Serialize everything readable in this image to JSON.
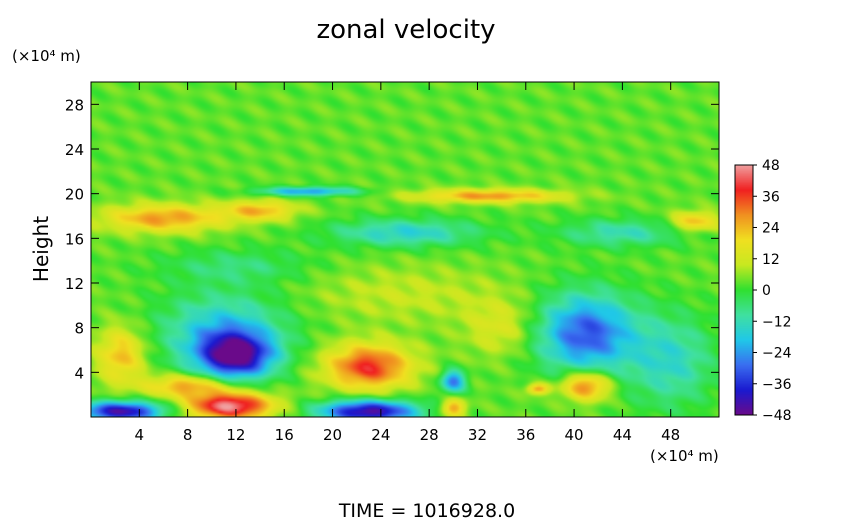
{
  "chart_data": {
    "type": "heatmap",
    "title": "zonal velocity",
    "ylabel": "Height",
    "xlabel": "",
    "x_unit": "(×10⁴ m)",
    "y_unit": "(×10⁴ m)",
    "footer": "TIME = 1016928.0",
    "xlim": [
      0,
      52
    ],
    "ylim": [
      0,
      30
    ],
    "x_ticks": [
      4,
      8,
      12,
      16,
      20,
      24,
      28,
      32,
      36,
      40,
      44,
      48
    ],
    "y_ticks": [
      4,
      8,
      12,
      16,
      20,
      24,
      28
    ],
    "colorbar": {
      "range": [
        -48,
        48
      ],
      "ticks": [
        48,
        36,
        24,
        12,
        0,
        -12,
        -24,
        -36,
        -48
      ],
      "colors": [
        "#6a0a8a",
        "#1a1ad0",
        "#3a6ef0",
        "#20c8e8",
        "#40e0a0",
        "#30e030",
        "#c8e820",
        "#f0e020",
        "#f09020",
        "#f02020",
        "#f0a0a0"
      ]
    },
    "background_value": 3,
    "features": [
      {
        "x": 2.5,
        "y": 0.5,
        "value": -44,
        "rx": 3.5,
        "ry": 0.9
      },
      {
        "x": 11.5,
        "y": 1.0,
        "value": 48,
        "rx": 3.5,
        "ry": 1.2
      },
      {
        "x": 8.0,
        "y": 2.8,
        "value": 28,
        "rx": 3.5,
        "ry": 1.0
      },
      {
        "x": 12.0,
        "y": 5.5,
        "value": -40,
        "rx": 3.0,
        "ry": 2.0
      },
      {
        "x": 11.0,
        "y": 7.5,
        "value": -20,
        "rx": 5.0,
        "ry": 3.5
      },
      {
        "x": 2.5,
        "y": 5.5,
        "value": 24,
        "rx": 2.0,
        "ry": 2.5
      },
      {
        "x": 23.0,
        "y": 4.5,
        "value": 38,
        "rx": 3.5,
        "ry": 2.0
      },
      {
        "x": 23.0,
        "y": 0.5,
        "value": -46,
        "rx": 4.0,
        "ry": 1.0
      },
      {
        "x": 30.0,
        "y": 3.2,
        "value": -28,
        "rx": 1.0,
        "ry": 1.0
      },
      {
        "x": 30.0,
        "y": 0.8,
        "value": 28,
        "rx": 1.0,
        "ry": 0.8
      },
      {
        "x": 41.0,
        "y": 7.5,
        "value": -32,
        "rx": 4.0,
        "ry": 3.5
      },
      {
        "x": 41.0,
        "y": 2.8,
        "value": 34,
        "rx": 2.0,
        "ry": 1.3
      },
      {
        "x": 37.0,
        "y": 2.5,
        "value": 28,
        "rx": 0.9,
        "ry": 0.5
      },
      {
        "x": 34.0,
        "y": 8.0,
        "value": 14,
        "rx": 3.0,
        "ry": 2.5
      },
      {
        "x": 48.0,
        "y": 5.0,
        "value": -14,
        "rx": 3.5,
        "ry": 4.0
      },
      {
        "x": 6.0,
        "y": 17.8,
        "value": 28,
        "rx": 5.0,
        "ry": 1.2
      },
      {
        "x": 14.0,
        "y": 18.5,
        "value": 24,
        "rx": 3.0,
        "ry": 0.9
      },
      {
        "x": 50.0,
        "y": 17.5,
        "value": 24,
        "rx": 2.0,
        "ry": 0.9
      },
      {
        "x": 33.0,
        "y": 19.8,
        "value": 28,
        "rx": 6.0,
        "ry": 0.6
      },
      {
        "x": 18.0,
        "y": 20.2,
        "value": -24,
        "rx": 4.0,
        "ry": 0.4
      },
      {
        "x": 26.0,
        "y": 16.5,
        "value": -16,
        "rx": 6.0,
        "ry": 1.2
      },
      {
        "x": 44.0,
        "y": 16.5,
        "value": -12,
        "rx": 5.0,
        "ry": 1.2
      },
      {
        "x": 12.0,
        "y": 13.5,
        "value": -6,
        "rx": 6.0,
        "ry": 1.5
      },
      {
        "x": 26.0,
        "y": 11.0,
        "value": 10,
        "rx": 8.0,
        "ry": 2.5
      },
      {
        "x": 26.0,
        "y": 25.0,
        "value": 3,
        "rx": 30.0,
        "ry": 5.0
      }
    ]
  }
}
